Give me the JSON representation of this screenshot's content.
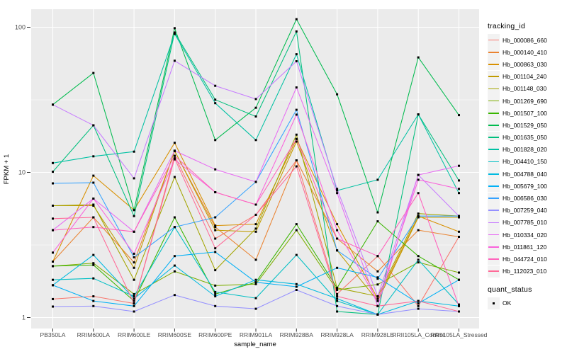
{
  "chart_data": {
    "type": "line",
    "title": "",
    "xlabel": "sample_name",
    "ylabel": "FPKM + 1",
    "y_scale": "log10",
    "y_ticks": [
      1,
      10,
      100
    ],
    "y_minor_ticks": [
      3.162,
      31.62
    ],
    "ylim": [
      1,
      120
    ],
    "grid": "on",
    "legend_position": "right",
    "panel_bg": "#EBEBEB",
    "grid_color": "#FFFFFF",
    "tick_label_color": "#4D4D4D",
    "axis_title_color": "#000000",
    "point_color": "#000000",
    "legend_key_bg": "#F2F2F2",
    "legend_title": "tracking_id",
    "quant_legend": {
      "title": "quant_status",
      "items": [
        "OK"
      ]
    },
    "categories": [
      "PB350LA",
      "RRIM600LA",
      "RRIM600LE",
      "RRIM600SE",
      "RRIM600PE",
      "RRIM901LA",
      "RRIM928BA",
      "RRIM928LA",
      "RRIM928LE",
      "RRII105LA_Control",
      "RRII105LA_Stressed"
    ],
    "series": [
      {
        "name": "Hb_000086_660",
        "color": "#F8766D",
        "values": [
          1.34,
          1.4,
          1.25,
          13.0,
          3.5,
          5.1,
          12.1,
          1.45,
          2.65,
          1.2,
          3.6
        ]
      },
      {
        "name": "Hb_000140_410",
        "color": "#EA8331",
        "values": [
          2.43,
          4.9,
          2.4,
          14.0,
          4.2,
          2.5,
          12.1,
          3.5,
          2.08,
          4.0,
          3.6
        ]
      },
      {
        "name": "Hb_000863_030",
        "color": "#D89000",
        "values": [
          2.43,
          9.5,
          5.5,
          16.0,
          4.3,
          4.4,
          17.0,
          4.4,
          1.35,
          5.0,
          3.9
        ]
      },
      {
        "name": "Hb_001104_240",
        "color": "#C09B00",
        "values": [
          5.9,
          5.9,
          2.2,
          14.1,
          4.0,
          3.9,
          16.3,
          2.9,
          1.3,
          4.9,
          4.9
        ]
      },
      {
        "name": "Hb_001148_030",
        "color": "#A3A500",
        "values": [
          5.9,
          6.0,
          1.82,
          9.3,
          2.12,
          4.1,
          18.2,
          1.6,
          1.4,
          5.2,
          5.0
        ]
      },
      {
        "name": "Hb_001269_690",
        "color": "#7CAE00",
        "values": [
          2.26,
          2.37,
          1.45,
          2.08,
          1.66,
          1.7,
          4.0,
          1.55,
          1.69,
          2.4,
          2.04
        ]
      },
      {
        "name": "Hb_001507_100",
        "color": "#39B600",
        "values": [
          2.26,
          2.3,
          1.3,
          4.9,
          1.45,
          1.75,
          4.4,
          1.6,
          4.6,
          2.65,
          1.82
        ]
      },
      {
        "name": "Hb_001529_050",
        "color": "#00BB4E",
        "values": [
          29.3,
          48.4,
          5.5,
          98.6,
          16.7,
          27.9,
          113.6,
          34.5,
          5.3,
          62.0,
          24.8
        ]
      },
      {
        "name": "Hb_001635_050",
        "color": "#00BF7D",
        "values": [
          10.1,
          21.1,
          5.0,
          92.0,
          31.7,
          24.3,
          93.6,
          1.1,
          1.05,
          25.1,
          8.8
        ]
      },
      {
        "name": "Hb_001828_020",
        "color": "#00C1A3",
        "values": [
          11.6,
          12.9,
          13.9,
          90.0,
          30.0,
          16.7,
          65.2,
          7.5,
          8.9,
          25.1,
          7.2
        ]
      },
      {
        "name": "Hb_004410_150",
        "color": "#00BFC4",
        "values": [
          1.82,
          1.86,
          1.4,
          4.2,
          1.5,
          1.36,
          2.7,
          1.3,
          1.05,
          2.5,
          1.23
        ]
      },
      {
        "name": "Hb_004788_040",
        "color": "#00BAE0",
        "values": [
          1.67,
          2.7,
          1.35,
          2.28,
          1.4,
          1.82,
          1.7,
          1.35,
          1.05,
          1.3,
          1.2
        ]
      },
      {
        "name": "Hb_005679_100",
        "color": "#00B0F6",
        "values": [
          1.67,
          1.3,
          1.2,
          2.65,
          2.83,
          1.75,
          1.63,
          2.2,
          1.89,
          1.25,
          1.82
        ]
      },
      {
        "name": "Hb_006586_030",
        "color": "#35A2FF",
        "values": [
          8.4,
          8.5,
          2.6,
          4.2,
          4.9,
          8.6,
          27.0,
          2.9,
          1.85,
          5.0,
          5.0
        ]
      },
      {
        "name": "Hb_007259_040",
        "color": "#9590FF",
        "values": [
          1.19,
          1.2,
          1.1,
          1.43,
          1.2,
          1.15,
          1.55,
          1.2,
          1.05,
          1.15,
          1.1
        ]
      },
      {
        "name": "Hb_007785_010",
        "color": "#C77CFF",
        "values": [
          29.3,
          21.1,
          9.1,
          58.8,
          39.5,
          32.0,
          58.3,
          7.7,
          1.4,
          9.6,
          5.0
        ]
      },
      {
        "name": "Hb_010334_020",
        "color": "#E76BF3",
        "values": [
          4.0,
          6.6,
          3.9,
          14.1,
          10.5,
          8.6,
          38.5,
          7.2,
          1.2,
          9.6,
          11.1
        ]
      },
      {
        "name": "Hb_011861_120",
        "color": "#FA62DB",
        "values": [
          2.8,
          6.6,
          2.75,
          12.3,
          7.3,
          6.0,
          25.0,
          4.0,
          1.3,
          8.9,
          7.7
        ]
      },
      {
        "name": "Hb_044724_010",
        "color": "#FF62BC",
        "values": [
          4.0,
          4.2,
          3.9,
          13.0,
          7.3,
          6.0,
          17.0,
          3.5,
          2.65,
          7.2,
          1.2
        ]
      },
      {
        "name": "Hb_112023_010",
        "color": "#FF6A98",
        "values": [
          4.8,
          4.9,
          1.25,
          12.5,
          3.0,
          5.1,
          11.0,
          1.4,
          1.2,
          1.3,
          1.1
        ]
      }
    ]
  }
}
